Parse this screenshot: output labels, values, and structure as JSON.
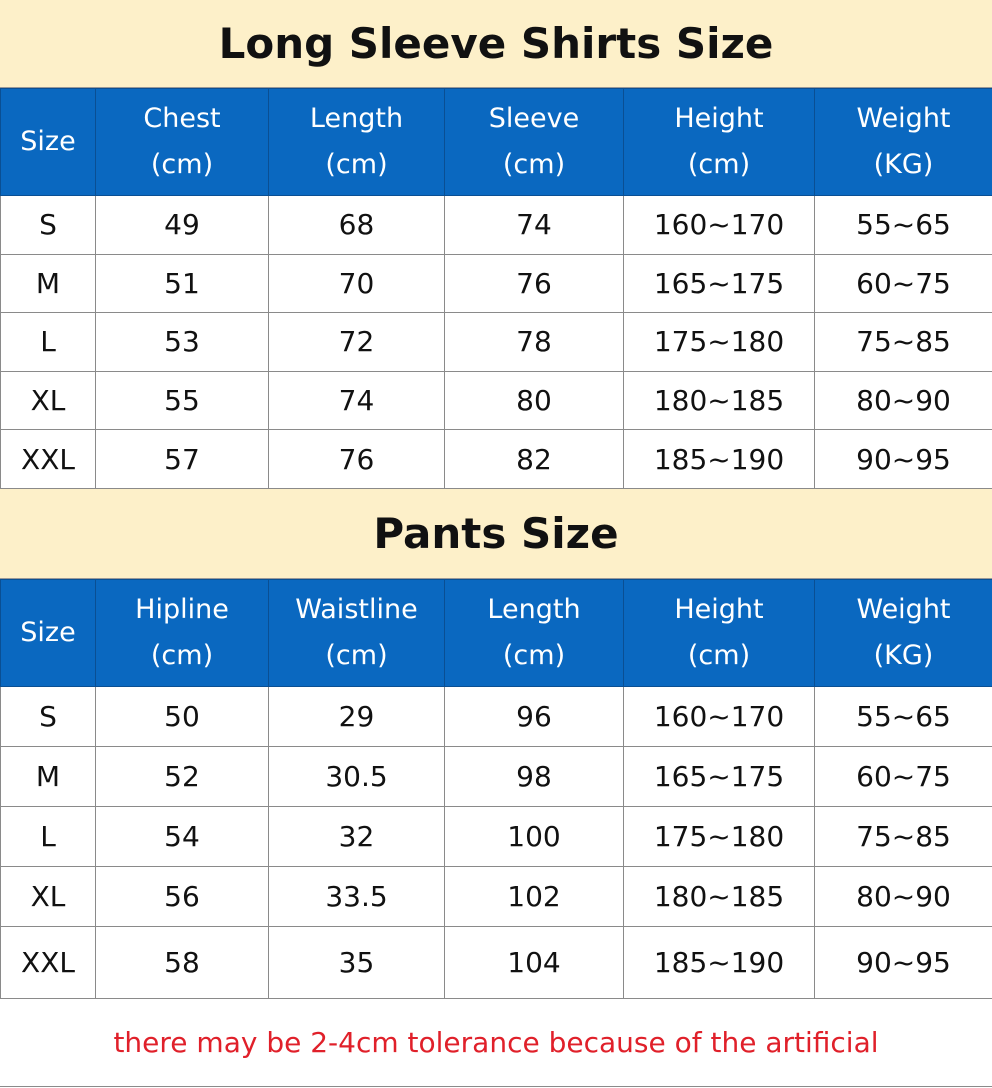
{
  "colors": {
    "title_bg": "#fdf0c9",
    "header_bg": "#0a68c0",
    "note_text": "#e0202a"
  },
  "shirts": {
    "title": "Long Sleeve Shirts Size",
    "headers": [
      [
        "Size",
        ""
      ],
      [
        "Chest",
        "(cm)"
      ],
      [
        "Length",
        "(cm)"
      ],
      [
        "Sleeve",
        "(cm)"
      ],
      [
        "Height",
        "(cm)"
      ],
      [
        "Weight",
        "(KG)"
      ]
    ],
    "rows": [
      [
        "S",
        "49",
        "68",
        "74",
        "160~170",
        "55~65"
      ],
      [
        "M",
        "51",
        "70",
        "76",
        "165~175",
        "60~75"
      ],
      [
        "L",
        "53",
        "72",
        "78",
        "175~180",
        "75~85"
      ],
      [
        "XL",
        "55",
        "74",
        "80",
        "180~185",
        "80~90"
      ],
      [
        "XXL",
        "57",
        "76",
        "82",
        "185~190",
        "90~95"
      ]
    ]
  },
  "pants": {
    "title": "Pants Size",
    "headers": [
      [
        "Size",
        ""
      ],
      [
        "Hipline",
        "(cm)"
      ],
      [
        "Waistline",
        "(cm)"
      ],
      [
        "Length",
        "(cm)"
      ],
      [
        "Height",
        "(cm)"
      ],
      [
        "Weight",
        "(KG)"
      ]
    ],
    "rows": [
      [
        "S",
        "50",
        "29",
        "96",
        "160~170",
        "55~65"
      ],
      [
        "M",
        "52",
        "30.5",
        "98",
        "165~175",
        "60~75"
      ],
      [
        "L",
        "54",
        "32",
        "100",
        "175~180",
        "75~85"
      ],
      [
        "XL",
        "56",
        "33.5",
        "102",
        "180~185",
        "80~90"
      ],
      [
        "XXL",
        "58",
        "35",
        "104",
        "185~190",
        "90~95"
      ]
    ]
  },
  "note": "there may be 2-4cm tolerance because of the artificial"
}
